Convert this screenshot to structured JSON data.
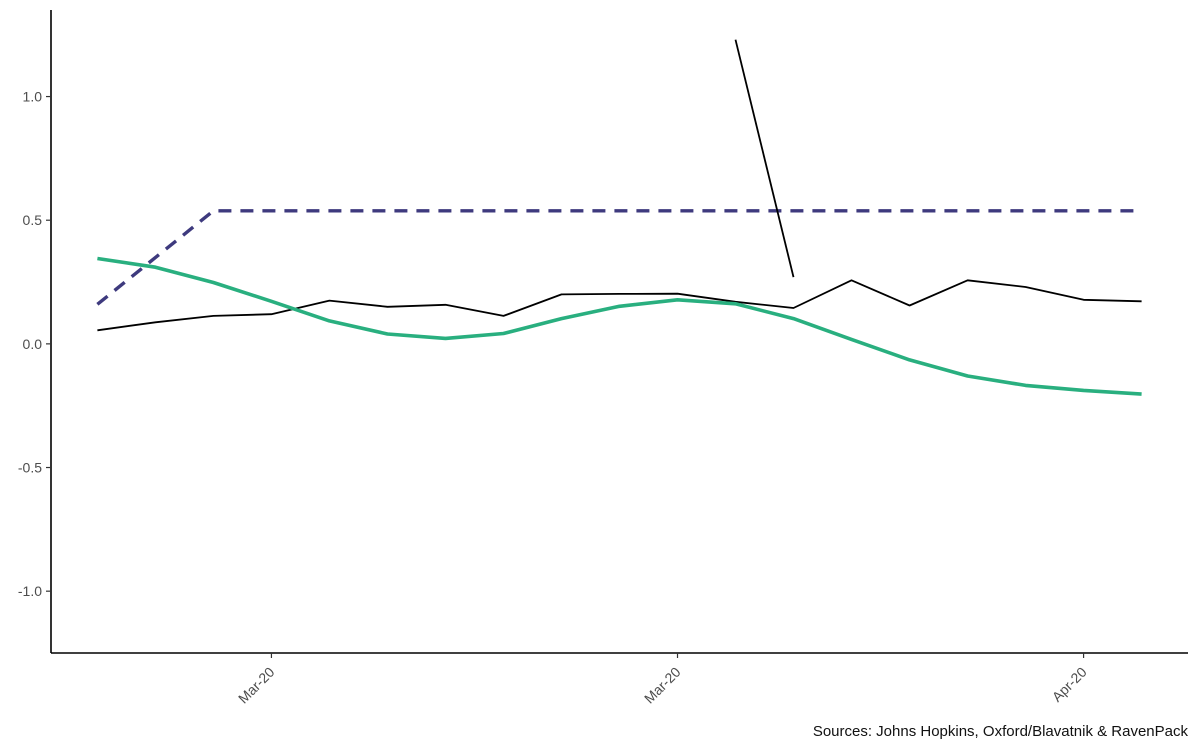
{
  "chart_data": {
    "type": "line",
    "ylim": [
      -1.25,
      1.35
    ],
    "xlim": [
      -0.8,
      18.8
    ],
    "y_ticks": [
      {
        "value": 1.0,
        "label": "1.0"
      },
      {
        "value": 0.5,
        "label": "0.5"
      },
      {
        "value": 0.0,
        "label": "0.0"
      },
      {
        "value": -0.5,
        "label": "-0.5"
      },
      {
        "value": -1.0,
        "label": "-1.0"
      }
    ],
    "x_ticks": [
      {
        "position": 3.0,
        "label": "Mar-20"
      },
      {
        "position": 10.0,
        "label": "Mar-20"
      },
      {
        "position": 17.0,
        "label": "Apr-20"
      }
    ],
    "grid": false,
    "series": [
      {
        "style": "thin-solid",
        "color": "#000000",
        "x": [
          0,
          1,
          2,
          3,
          4,
          5,
          6,
          7,
          8,
          9,
          10,
          11,
          12,
          13,
          14,
          15,
          16,
          17,
          18
        ],
        "y": [
          0.055,
          0.087,
          0.113,
          0.12,
          0.175,
          0.15,
          0.158,
          0.113,
          0.2,
          0.202,
          0.203,
          0.17,
          0.145,
          0.257,
          0.155,
          0.257,
          0.23,
          0.178,
          0.172
        ]
      },
      {
        "style": "thick-solid",
        "color": "#29AF7F",
        "x": [
          0,
          1,
          2,
          3,
          4,
          5,
          6,
          7,
          8,
          9,
          10,
          11,
          12,
          13,
          14,
          15,
          16,
          17,
          18
        ],
        "y": [
          0.345,
          0.31,
          0.248,
          0.172,
          0.093,
          0.04,
          0.022,
          0.042,
          0.102,
          0.152,
          0.178,
          0.162,
          0.102,
          0.018,
          -0.065,
          -0.13,
          -0.168,
          -0.188,
          -0.203
        ]
      },
      {
        "style": "dashed",
        "color": "#3E3A7E",
        "x": [
          0,
          2,
          18
        ],
        "y": [
          0.16,
          0.538,
          0.538
        ]
      },
      {
        "style": "thin-solid",
        "color": "#000000",
        "x": [
          11,
          12
        ],
        "y": [
          1.23,
          0.27
        ]
      }
    ]
  },
  "caption": "Sources: Johns Hopkins, Oxford/Blavatnik & RavenPack"
}
